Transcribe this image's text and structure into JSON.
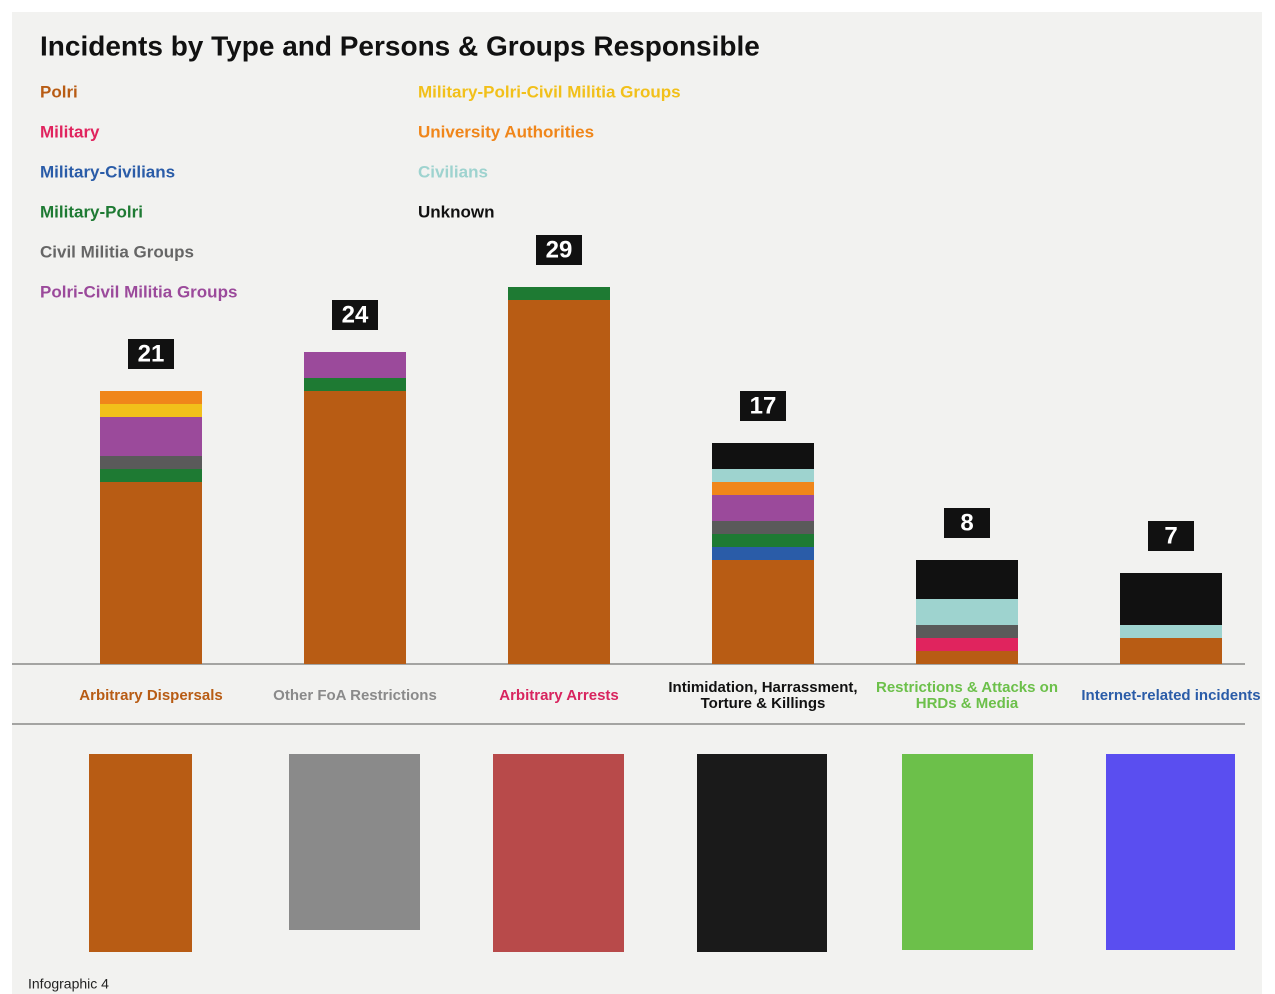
{
  "chart_data": {
    "type": "stacked-bar",
    "title": "Incidents by Type and Persons & Groups Responsible",
    "categories": [
      "Arbitrary Dispersals",
      "Other FoA Restrictions",
      "Arbitrary Arrests",
      "Intimidation, Harrassment, Torture & Killings",
      "Restrictions & Attacks on HRDs & Media",
      "Internet-related incidents"
    ],
    "category_colors": [
      "#b85c14",
      "#8a8a8a",
      "#d8245e",
      "#111111",
      "#6cc04a",
      "#2a5ca8"
    ],
    "totals": [
      21,
      24,
      29,
      17,
      8,
      7
    ],
    "series": [
      {
        "name": "Polri",
        "color": "#b85c14",
        "values": [
          14,
          21,
          28,
          8,
          1,
          2
        ]
      },
      {
        "name": "Military",
        "color": "#e0245e",
        "values": [
          0,
          0,
          0,
          0,
          1,
          0
        ]
      },
      {
        "name": "Military-Civilians",
        "color": "#2a5ca8",
        "values": [
          0,
          0,
          0,
          1,
          0,
          0
        ]
      },
      {
        "name": "Military-Polri",
        "color": "#1e7a33",
        "values": [
          1,
          1,
          1,
          1,
          0,
          0
        ]
      },
      {
        "name": "Civil Militia Groups",
        "color": "#5a5a5a",
        "values": [
          1,
          0,
          0,
          1,
          1,
          0
        ]
      },
      {
        "name": "Polri-Civil Militia Groups",
        "color": "#9b4a9b",
        "values": [
          3,
          2,
          0,
          2,
          0,
          0
        ]
      },
      {
        "name": "Military-Polri-Civil Militia Groups",
        "color": "#f2c01a",
        "values": [
          1,
          0,
          0,
          0,
          0,
          0
        ]
      },
      {
        "name": "University Authorities",
        "color": "#f0861a",
        "values": [
          1,
          0,
          0,
          1,
          0,
          0
        ]
      },
      {
        "name": "Civilians",
        "color": "#9ed3cf",
        "values": [
          0,
          0,
          0,
          1,
          2,
          1
        ]
      },
      {
        "name": "Unknown",
        "color": "#111111",
        "values": [
          0,
          0,
          0,
          2,
          3,
          4
        ]
      }
    ],
    "caption": "Infographic 4"
  }
}
